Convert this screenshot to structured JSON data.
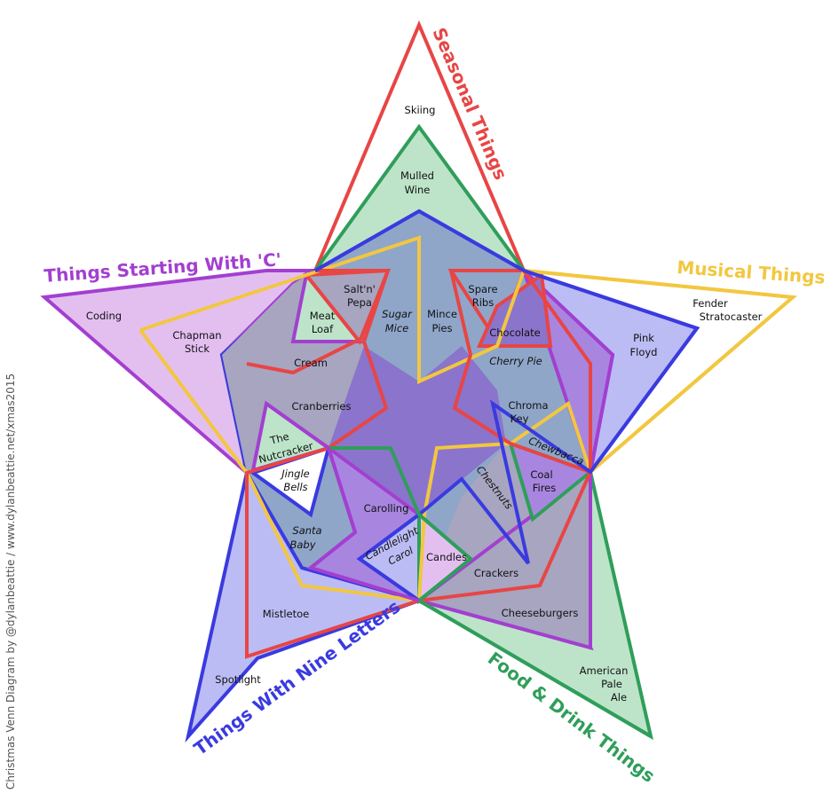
{
  "titles": {
    "seasonal": "Seasonal Things",
    "starting_c": "Things Starting With 'C'",
    "musical": "Musical Things",
    "nine_letters": "Things With Nine Letters",
    "food_drink": "Food & Drink Things"
  },
  "colors": {
    "seasonal": "#e84545",
    "food_drink": "#2f9e5a",
    "nine_letters": "#3a3ae0",
    "starting_c": "#a33fd0",
    "musical": "#f2c740"
  },
  "items": {
    "skiing": "Skiing",
    "mulled_1": "Mulled",
    "mulled_2": "Wine",
    "coding": "Coding",
    "chapman_1": "Chapman",
    "chapman_2": "Stick",
    "saltnpepa_1": "Salt'n'",
    "saltnpepa_2": "Pepa",
    "meatloaf_1": "Meat",
    "meatloaf_2": "Loaf",
    "sugarmice_1": "Sugar",
    "sugarmice_2": "Mice",
    "mincepies_1": "Mince",
    "mincepies_2": "Pies",
    "spareribs_1": "Spare",
    "spareribs_2": "Ribs",
    "chocolate": "Chocolate",
    "cherrypie": "Cherry Pie",
    "fender_1": "Fender",
    "fender_2": "Stratocaster",
    "pinkfloyd_1": "Pink",
    "pinkfloyd_2": "Floyd",
    "cream": "Cream",
    "cranberries": "Cranberries",
    "nutcracker_1": "The",
    "nutcracker_2": "Nutcracker",
    "jinglebells_1": "Jingle",
    "jinglebells_2": "Bells",
    "santababy_1": "Santa",
    "santababy_2": "Baby",
    "carolling": "Carolling",
    "chromakey_1": "Chroma",
    "chromakey_2": "Key",
    "chewbacca": "Chewbacca",
    "coalfires_1": "Coal",
    "coalfires_2": "Fires",
    "chestnuts": "Chestnuts",
    "candlelight_1": "Candlelight",
    "candlelight_2": "Carol",
    "candles": "Candles",
    "crackers": "Crackers",
    "mistletoe": "Mistletoe",
    "cheeseburgers": "Cheeseburgers",
    "spotlight": "Spotlight",
    "ale_1": "American",
    "ale_2": "Pale",
    "ale_3": "Ale"
  },
  "credit": "Christmas Venn Diagram by @dylanbeattie / www.dylanbeattie.net/xmas2015"
}
